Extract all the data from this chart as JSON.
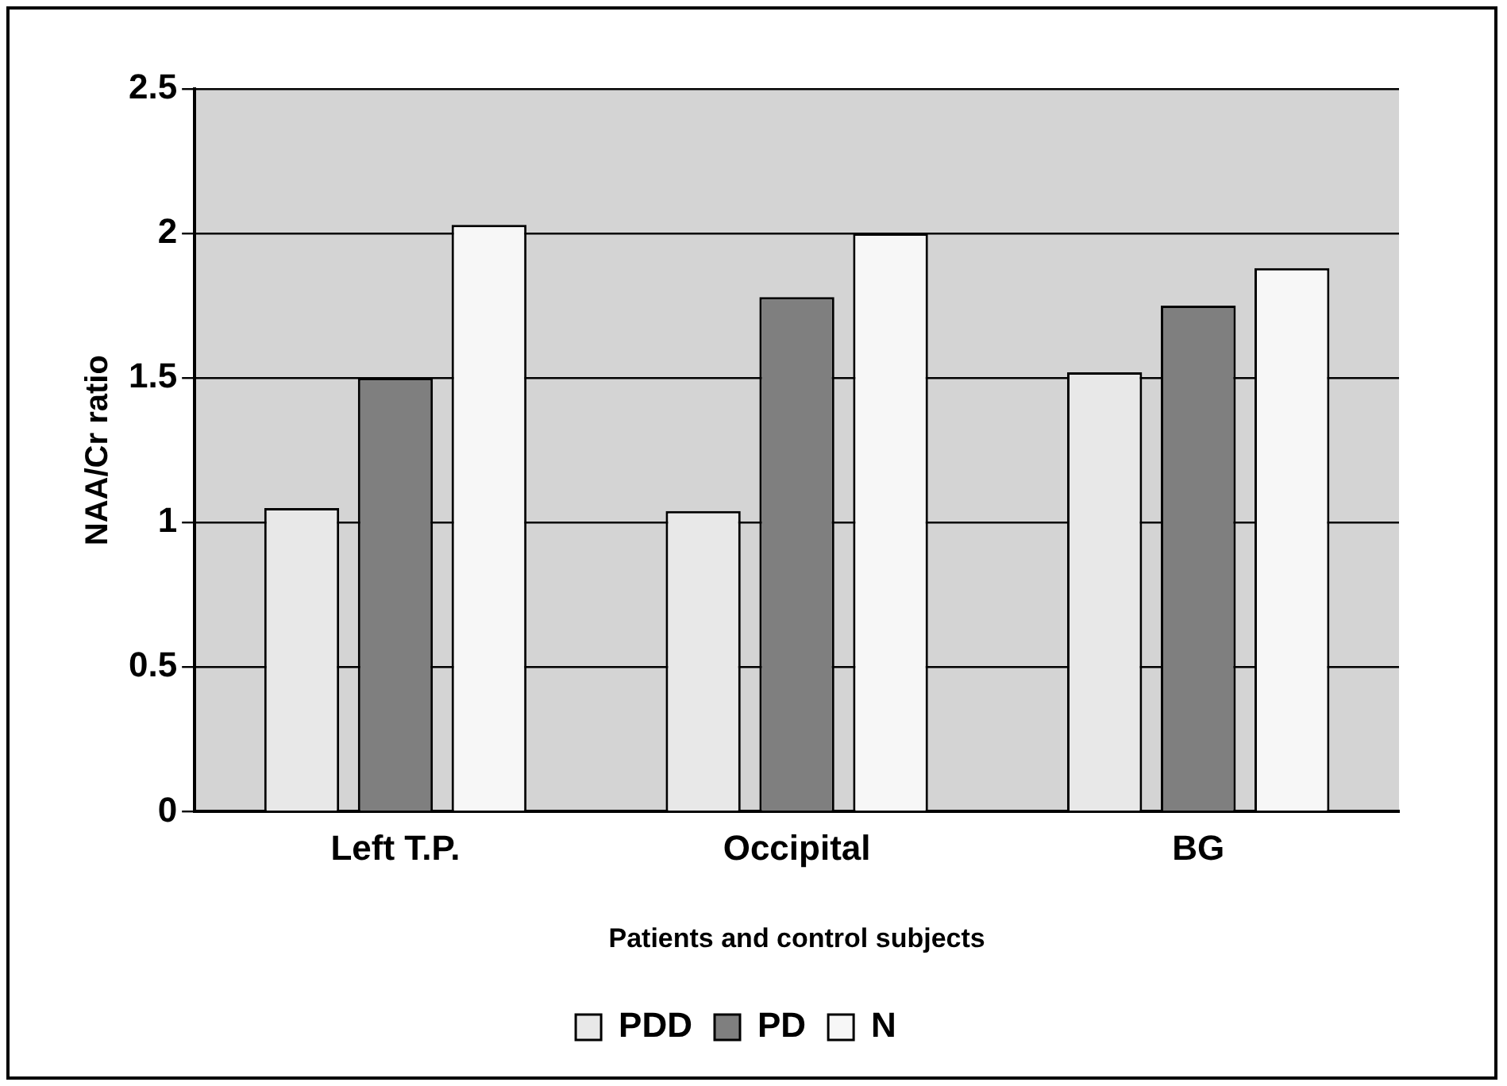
{
  "chart_data": {
    "type": "bar",
    "xlabel": "Patients and control subjects",
    "ylabel": "NAA/Cr ratio",
    "categories": [
      "Left T.P.",
      "Occipital",
      "BG"
    ],
    "series": [
      {
        "name": "PDD",
        "color": "#e8e8e8",
        "values": [
          1.05,
          1.04,
          1.52
        ]
      },
      {
        "name": "PD",
        "color": "#7f7f7f",
        "values": [
          1.5,
          1.78,
          1.75
        ]
      },
      {
        "name": "N",
        "color": "#f7f7f7",
        "values": [
          2.03,
          2.0,
          1.88
        ]
      }
    ],
    "ylim": [
      0,
      2.5
    ],
    "yticks": [
      0,
      0.5,
      1,
      1.5,
      2,
      2.5
    ],
    "grid": "y",
    "legend": "bottom"
  }
}
